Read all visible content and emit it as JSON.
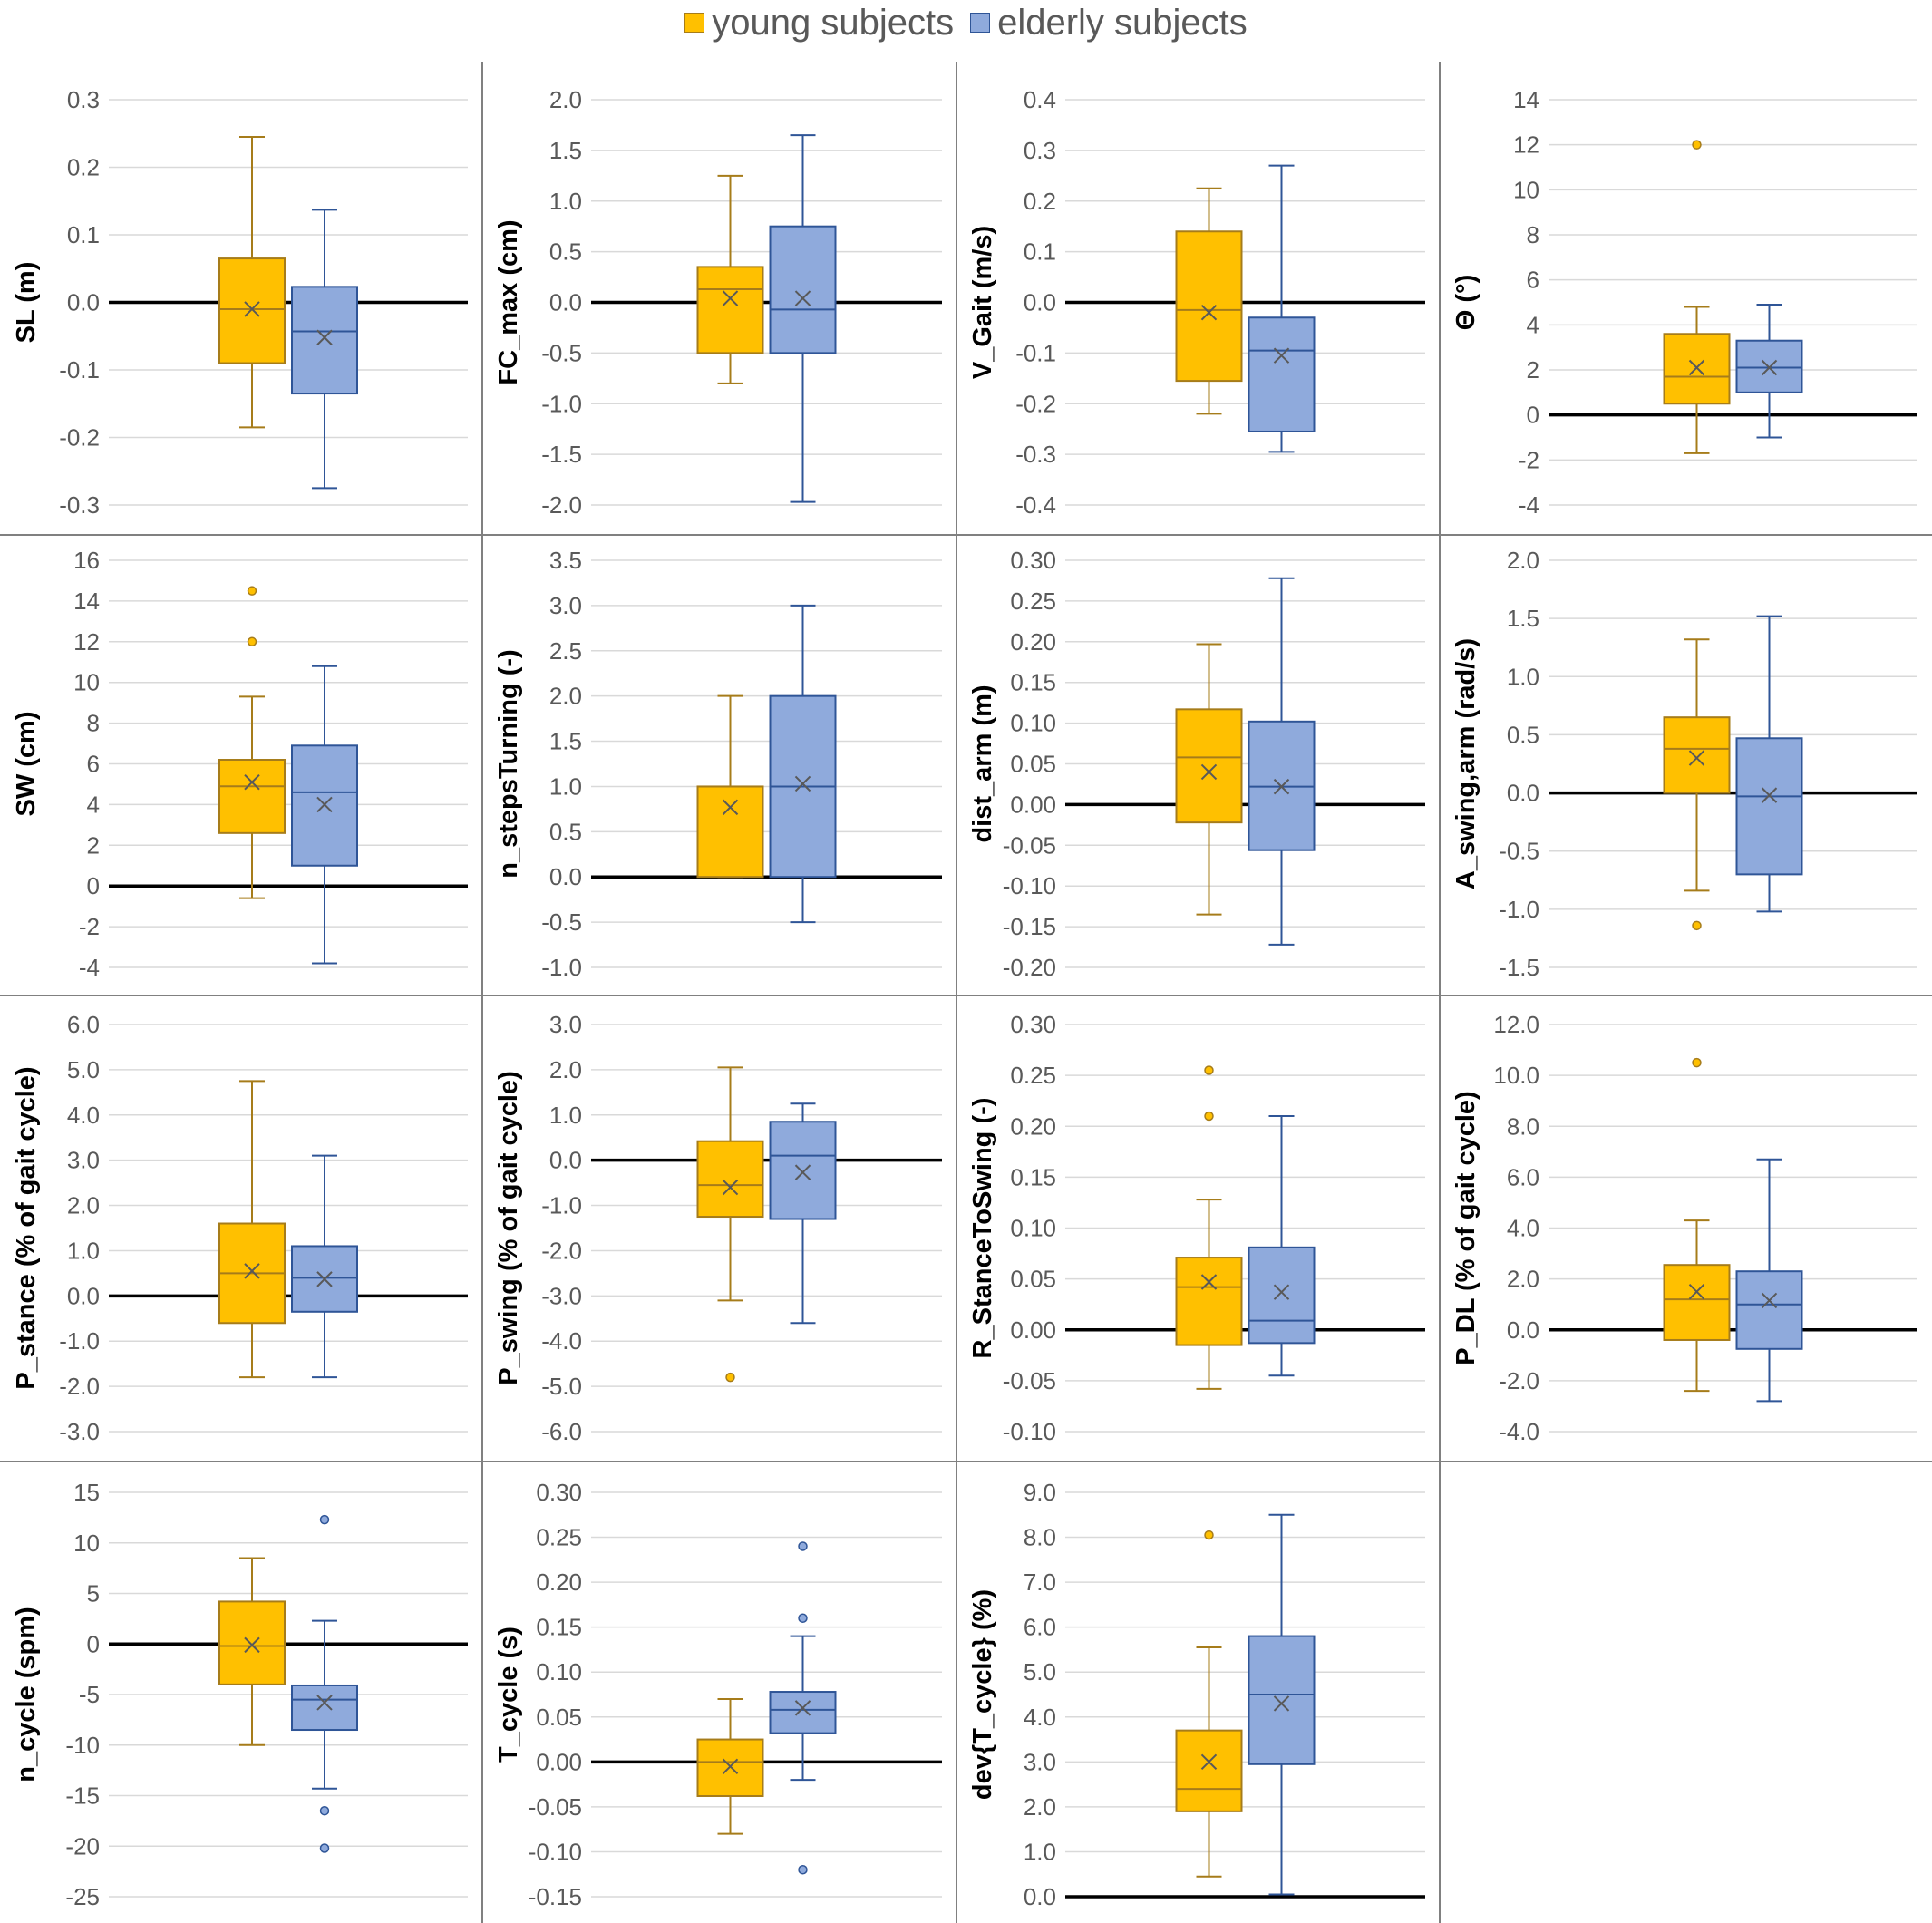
{
  "colors": {
    "young_fill": "#FFC000",
    "young_edge": "#A67C1A",
    "elderly_fill": "#8FAADC",
    "elderly_edge": "#2F5597",
    "grid": "#D9D9D9",
    "divider": "#808080",
    "tick": "#595959"
  },
  "legend": {
    "young": "young subjects",
    "elderly": "elderly subjects"
  },
  "chart_data": [
    {
      "type": "box",
      "ylabel": "SL (m)",
      "ylim": [
        -0.3,
        0.3
      ],
      "ticks": [
        "0.3",
        "0.2",
        "0.1",
        "0.0",
        "-0.1",
        "-0.2",
        "-0.3"
      ],
      "series": [
        {
          "name": "young subjects",
          "min": -0.185,
          "q1": -0.09,
          "median": -0.01,
          "q3": 0.065,
          "max": 0.245,
          "mean": -0.01,
          "outliers": []
        },
        {
          "name": "elderly subjects",
          "min": -0.275,
          "q1": -0.135,
          "median": -0.043,
          "q3": 0.023,
          "max": 0.137,
          "mean": -0.052,
          "outliers": []
        }
      ]
    },
    {
      "type": "box",
      "ylabel": "FC_max (cm)",
      "ylim": [
        -2.0,
        2.0
      ],
      "ticks": [
        "2.0",
        "1.5",
        "1.0",
        "0.5",
        "0.0",
        "-0.5",
        "-1.0",
        "-1.5",
        "-2.0"
      ],
      "series": [
        {
          "name": "young subjects",
          "min": -0.8,
          "q1": -0.5,
          "median": 0.13,
          "q3": 0.35,
          "max": 1.25,
          "mean": 0.04,
          "outliers": []
        },
        {
          "name": "elderly subjects",
          "min": -1.97,
          "q1": -0.5,
          "median": -0.07,
          "q3": 0.75,
          "max": 1.65,
          "mean": 0.04,
          "outliers": []
        }
      ]
    },
    {
      "type": "box",
      "ylabel": "V_Gait (m/s)",
      "ylim": [
        -0.4,
        0.4
      ],
      "ticks": [
        "0.4",
        "0.3",
        "0.2",
        "0.1",
        "0.0",
        "-0.1",
        "-0.2",
        "-0.3",
        "-0.4"
      ],
      "series": [
        {
          "name": "young subjects",
          "min": -0.22,
          "q1": -0.155,
          "median": -0.015,
          "q3": 0.14,
          "max": 0.225,
          "mean": -0.02,
          "outliers": []
        },
        {
          "name": "elderly subjects",
          "min": -0.295,
          "q1": -0.255,
          "median": -0.095,
          "q3": -0.03,
          "max": 0.27,
          "mean": -0.105,
          "outliers": []
        }
      ]
    },
    {
      "type": "box",
      "ylabel": "Θ (°)",
      "ylim": [
        -4,
        14
      ],
      "ticks": [
        "14",
        "12",
        "10",
        "8",
        "6",
        "4",
        "2",
        "0",
        "-2",
        "-4"
      ],
      "series": [
        {
          "name": "young subjects",
          "min": -1.7,
          "q1": 0.5,
          "median": 1.7,
          "q3": 3.6,
          "max": 4.8,
          "mean": 2.1,
          "outliers": [
            12.0
          ]
        },
        {
          "name": "elderly subjects",
          "min": -1.0,
          "q1": 1.0,
          "median": 2.1,
          "q3": 3.3,
          "max": 4.9,
          "mean": 2.1,
          "outliers": []
        }
      ]
    },
    {
      "type": "box",
      "ylabel": "SW (cm)",
      "ylim": [
        -4,
        16
      ],
      "ticks": [
        "16",
        "14",
        "12",
        "10",
        "8",
        "6",
        "4",
        "2",
        "0",
        "-2",
        "-4"
      ],
      "series": [
        {
          "name": "young subjects",
          "min": -0.6,
          "q1": 2.6,
          "median": 4.9,
          "q3": 6.2,
          "max": 9.3,
          "mean": 5.1,
          "outliers": [
            14.5,
            12.0
          ]
        },
        {
          "name": "elderly subjects",
          "min": -3.8,
          "q1": 1.0,
          "median": 4.6,
          "q3": 6.9,
          "max": 10.8,
          "mean": 4.0,
          "outliers": []
        }
      ]
    },
    {
      "type": "box",
      "ylabel": "n_stepsTurning (-)",
      "ylim": [
        -1.0,
        3.5
      ],
      "ticks": [
        "3.5",
        "3.0",
        "2.5",
        "2.0",
        "1.5",
        "1.0",
        "0.5",
        "0.0",
        "-0.5",
        "-1.0"
      ],
      "series": [
        {
          "name": "young subjects",
          "min": 0.0,
          "q1": 0.0,
          "median": 1.0,
          "q3": 1.0,
          "max": 2.0,
          "mean": 0.77,
          "outliers": []
        },
        {
          "name": "elderly subjects",
          "min": -0.5,
          "q1": 0.0,
          "median": 1.0,
          "q3": 2.0,
          "max": 3.0,
          "mean": 1.03,
          "outliers": []
        }
      ]
    },
    {
      "type": "box",
      "ylabel": "dist_arm (m)",
      "ylim": [
        -0.2,
        0.3
      ],
      "ticks": [
        "0.30",
        "0.25",
        "0.20",
        "0.15",
        "0.10",
        "0.05",
        "0.00",
        "-0.05",
        "-0.10",
        "-0.15",
        "-0.20"
      ],
      "series": [
        {
          "name": "young subjects",
          "min": -0.135,
          "q1": -0.022,
          "median": 0.058,
          "q3": 0.117,
          "max": 0.197,
          "mean": 0.04,
          "outliers": []
        },
        {
          "name": "elderly subjects",
          "min": -0.172,
          "q1": -0.056,
          "median": 0.022,
          "q3": 0.102,
          "max": 0.278,
          "mean": 0.022,
          "outliers": []
        }
      ]
    },
    {
      "type": "box",
      "ylabel": "A_swing,arm (rad/s)",
      "ylim": [
        -1.5,
        2.0
      ],
      "ticks": [
        "2.0",
        "1.5",
        "1.0",
        "0.5",
        "0.0",
        "-0.5",
        "-1.0",
        "-1.5"
      ],
      "series": [
        {
          "name": "young subjects",
          "min": -0.84,
          "q1": 0.0,
          "median": 0.38,
          "q3": 0.65,
          "max": 1.32,
          "mean": 0.3,
          "outliers": [
            -1.14
          ]
        },
        {
          "name": "elderly subjects",
          "min": -1.02,
          "q1": -0.7,
          "median": -0.03,
          "q3": 0.47,
          "max": 1.52,
          "mean": -0.02,
          "outliers": []
        }
      ]
    },
    {
      "type": "box",
      "ylabel": "P_stance (% of gait cycle)",
      "ylim": [
        -3.0,
        6.0
      ],
      "ticks": [
        "6.0",
        "5.0",
        "4.0",
        "3.0",
        "2.0",
        "1.0",
        "0.0",
        "-1.0",
        "-2.0",
        "-3.0"
      ],
      "series": [
        {
          "name": "young subjects",
          "min": -1.8,
          "q1": -0.6,
          "median": 0.5,
          "q3": 1.6,
          "max": 4.75,
          "mean": 0.55,
          "outliers": []
        },
        {
          "name": "elderly subjects",
          "min": -1.8,
          "q1": -0.35,
          "median": 0.4,
          "q3": 1.1,
          "max": 3.1,
          "mean": 0.37,
          "outliers": []
        }
      ]
    },
    {
      "type": "box",
      "ylabel": "P_swing (% of gait cycle)",
      "ylim": [
        -6.0,
        3.0
      ],
      "ticks": [
        "3.0",
        "2.0",
        "1.0",
        "0.0",
        "-1.0",
        "-2.0",
        "-3.0",
        "-4.0",
        "-5.0",
        "-6.0"
      ],
      "series": [
        {
          "name": "young subjects",
          "min": -3.1,
          "q1": -1.25,
          "median": -0.55,
          "q3": 0.42,
          "max": 2.05,
          "mean": -0.6,
          "outliers": [
            -4.8
          ]
        },
        {
          "name": "elderly subjects",
          "min": -3.6,
          "q1": -1.3,
          "median": 0.1,
          "q3": 0.85,
          "max": 1.25,
          "mean": -0.27,
          "outliers": []
        }
      ]
    },
    {
      "type": "box",
      "ylabel": "R_StanceToSwing (-)",
      "ylim": [
        -0.1,
        0.3
      ],
      "ticks": [
        "0.30",
        "0.25",
        "0.20",
        "0.15",
        "0.10",
        "0.05",
        "0.00",
        "-0.05",
        "-0.10"
      ],
      "series": [
        {
          "name": "young subjects",
          "min": -0.058,
          "q1": -0.015,
          "median": 0.042,
          "q3": 0.071,
          "max": 0.128,
          "mean": 0.047,
          "outliers": [
            0.255,
            0.21
          ]
        },
        {
          "name": "elderly subjects",
          "min": -0.045,
          "q1": -0.013,
          "median": 0.009,
          "q3": 0.081,
          "max": 0.21,
          "mean": 0.037,
          "outliers": []
        }
      ]
    },
    {
      "type": "box",
      "ylabel": "P_DL (% of gait cycle)",
      "ylim": [
        -4.0,
        12.0
      ],
      "ticks": [
        "12.0",
        "10.0",
        "8.0",
        "6.0",
        "4.0",
        "2.0",
        "0.0",
        "-2.0",
        "-4.0"
      ],
      "series": [
        {
          "name": "young subjects",
          "min": -2.4,
          "q1": -0.4,
          "median": 1.2,
          "q3": 2.55,
          "max": 4.3,
          "mean": 1.5,
          "outliers": [
            10.5
          ]
        },
        {
          "name": "elderly subjects",
          "min": -2.8,
          "q1": -0.75,
          "median": 1.0,
          "q3": 2.3,
          "max": 6.7,
          "mean": 1.15,
          "outliers": []
        }
      ]
    },
    {
      "type": "box",
      "ylabel": "n_cycle (spm)",
      "ylim": [
        -25,
        15
      ],
      "ticks": [
        "15",
        "10",
        "5",
        "0",
        "-5",
        "-10",
        "-15",
        "-20",
        "-25"
      ],
      "series": [
        {
          "name": "young subjects",
          "min": -10.0,
          "q1": -4.0,
          "median": -0.2,
          "q3": 4.2,
          "max": 8.5,
          "mean": -0.1,
          "outliers": []
        },
        {
          "name": "elderly subjects",
          "min": -14.3,
          "q1": -8.5,
          "median": -5.5,
          "q3": -4.1,
          "max": 2.3,
          "mean": -5.8,
          "outliers": [
            12.3,
            -16.5,
            -20.2
          ]
        }
      ]
    },
    {
      "type": "box",
      "ylabel": "T_cycle (s)",
      "ylim": [
        -0.15,
        0.3
      ],
      "ticks": [
        "0.30",
        "0.25",
        "0.20",
        "0.15",
        "0.10",
        "0.05",
        "0.00",
        "-0.05",
        "-0.10",
        "-0.15"
      ],
      "series": [
        {
          "name": "young subjects",
          "min": -0.08,
          "q1": -0.038,
          "median": 0.0,
          "q3": 0.025,
          "max": 0.07,
          "mean": -0.005,
          "outliers": []
        },
        {
          "name": "elderly subjects",
          "min": -0.02,
          "q1": 0.032,
          "median": 0.058,
          "q3": 0.078,
          "max": 0.14,
          "mean": 0.06,
          "outliers": [
            0.24,
            0.16,
            -0.12
          ]
        }
      ]
    },
    {
      "type": "box",
      "ylabel": "dev{T_cycle} (%)",
      "ylim": [
        0.0,
        9.0
      ],
      "ticks": [
        "9.0",
        "8.0",
        "7.0",
        "6.0",
        "5.0",
        "4.0",
        "3.0",
        "2.0",
        "1.0",
        "0.0"
      ],
      "series": [
        {
          "name": "young subjects",
          "min": 0.45,
          "q1": 1.9,
          "median": 2.4,
          "q3": 3.7,
          "max": 5.55,
          "mean": 3.0,
          "outliers": [
            8.05
          ]
        },
        {
          "name": "elderly subjects",
          "min": 0.05,
          "q1": 2.95,
          "median": 4.5,
          "q3": 5.8,
          "max": 8.5,
          "mean": 4.3,
          "outliers": []
        }
      ]
    }
  ]
}
